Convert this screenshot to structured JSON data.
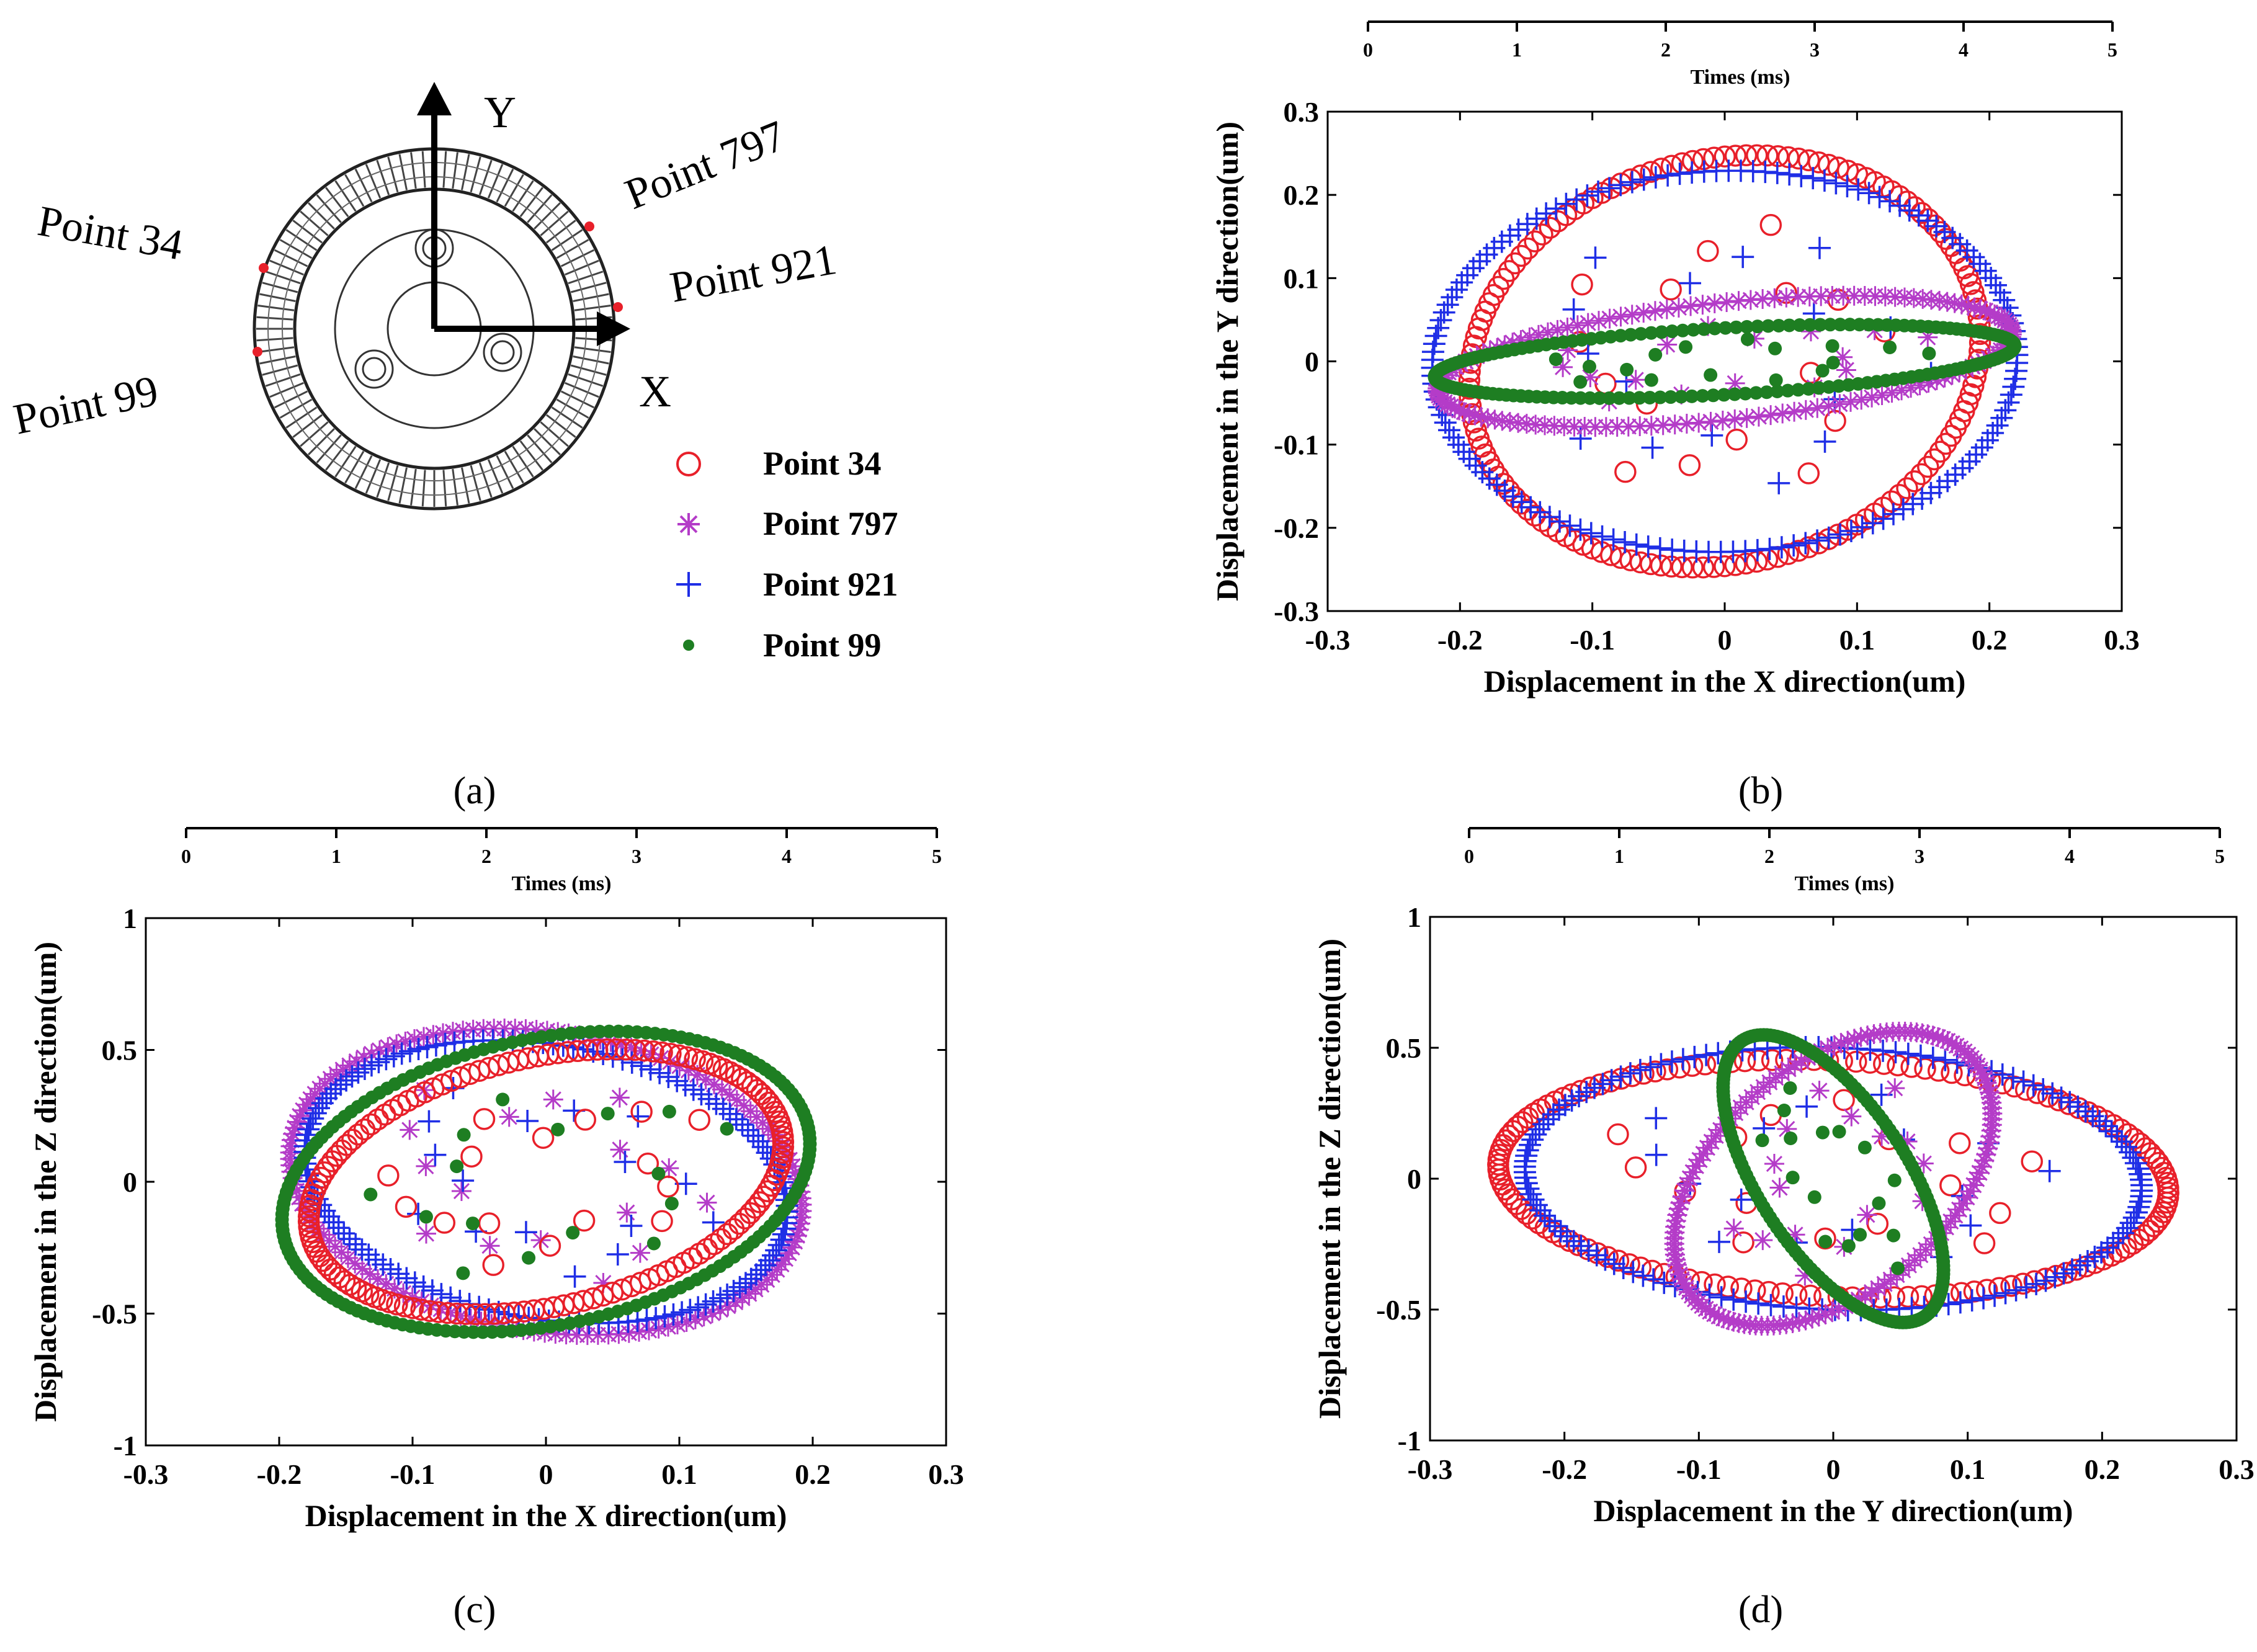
{
  "legend": {
    "items": [
      {
        "name": "Point 34",
        "marker": "circle",
        "color": "#e8202a"
      },
      {
        "name": "Point 797",
        "marker": "asterisk",
        "color": "#b43cc8"
      },
      {
        "name": "Point 921",
        "marker": "plus",
        "color": "#1f2ee6"
      },
      {
        "name": "Point 99",
        "marker": "dot",
        "color": "#1e7e22"
      }
    ]
  },
  "diagram": {
    "panel_label": "(a)",
    "axis_y": "Y",
    "axis_x": "X",
    "points": [
      "Point 797",
      "Point 34",
      "Point 921",
      "Point 99"
    ]
  },
  "chart_data": [
    {
      "type": "scatter",
      "panel_label": "(b)",
      "xlabel": "Displacement in the X direction(um)",
      "ylabel": "Displacement in the Y direction(um)",
      "xlim": [
        -0.3,
        0.3
      ],
      "ylim": [
        -0.3,
        0.3
      ],
      "xticks": [
        "-0.3",
        "-0.2",
        "-0.1",
        "0",
        "0.1",
        "0.2",
        "0.3"
      ],
      "yticks": [
        "0.3",
        "0.2",
        "0.1",
        "0",
        "-0.1",
        "-0.2",
        "-0.3"
      ],
      "time_axis": {
        "label": "Times (ms)",
        "ticks": [
          "0",
          "1",
          "2",
          "3",
          "4",
          "5"
        ],
        "range": [
          0,
          5
        ]
      },
      "series": [
        {
          "name": "Point 34",
          "orbit": {
            "cx": 0.0,
            "cy": 0.0,
            "a": 0.19,
            "b": 0.25,
            "theta_deg": -12
          }
        },
        {
          "name": "Point 921",
          "orbit": {
            "cx": 0.0,
            "cy": 0.0,
            "a": 0.22,
            "b": 0.23,
            "theta_deg": -18
          }
        },
        {
          "name": "Point 797",
          "orbit": {
            "cx": 0.0,
            "cy": 0.0,
            "a": 0.22,
            "b": 0.07,
            "theta_deg": 10
          }
        },
        {
          "name": "Point 99",
          "orbit": {
            "cx": 0.0,
            "cy": 0.0,
            "a": 0.22,
            "b": 0.04,
            "theta_deg": 5
          }
        }
      ]
    },
    {
      "type": "scatter",
      "panel_label": "(c)",
      "xlabel": "Displacement in the X direction(um)",
      "ylabel": "Displacement in the Z direction(um)",
      "xlim": [
        -0.3,
        0.3
      ],
      "ylim": [
        -1,
        1
      ],
      "xticks": [
        "-0.3",
        "-0.2",
        "-0.1",
        "0",
        "0.1",
        "0.2",
        "0.3"
      ],
      "yticks": [
        "1",
        "0.5",
        "0",
        "-0.5",
        "-1"
      ],
      "time_axis": {
        "label": "Times (ms)",
        "ticks": [
          "0",
          "1",
          "2",
          "3",
          "4",
          "5"
        ],
        "range": [
          0,
          5
        ]
      },
      "series": [
        {
          "name": "Point 797",
          "orbit": {
            "cx": 0.0,
            "cy": 0.0,
            "a": 0.2,
            "b": 0.55,
            "theta_deg": -30
          }
        },
        {
          "name": "Point 921",
          "orbit": {
            "cx": 0.0,
            "cy": 0.0,
            "a": 0.19,
            "b": 0.5,
            "theta_deg": -30
          }
        },
        {
          "name": "Point 34",
          "orbit": {
            "cx": 0.0,
            "cy": 0.0,
            "a": 0.19,
            "b": 0.45,
            "theta_deg": 30
          }
        },
        {
          "name": "Point 99",
          "orbit": {
            "cx": 0.0,
            "cy": 0.0,
            "a": 0.21,
            "b": 0.52,
            "theta_deg": 30
          }
        }
      ]
    },
    {
      "type": "scatter",
      "panel_label": "(d)",
      "xlabel": "Displacement in the Y direction(um)",
      "ylabel": "Displacement in the Z direction(um)",
      "xlim": [
        -0.3,
        0.3
      ],
      "ylim": [
        -1,
        1
      ],
      "xticks": [
        "-0.3",
        "-0.2",
        "-0.1",
        "0",
        "0.1",
        "0.2",
        "0.3"
      ],
      "yticks": [
        "1",
        "0.5",
        "0",
        "-0.5",
        "-1"
      ],
      "time_axis": {
        "label": "Times (ms)",
        "ticks": [
          "0",
          "1",
          "2",
          "3",
          "4",
          "5"
        ],
        "range": [
          0,
          5
        ]
      },
      "series": [
        {
          "name": "Point 34",
          "orbit": {
            "cx": 0.0,
            "cy": 0.0,
            "a": 0.25,
            "b": 0.45,
            "theta_deg": -5
          }
        },
        {
          "name": "Point 921",
          "orbit": {
            "cx": 0.0,
            "cy": 0.0,
            "a": 0.23,
            "b": 0.5,
            "theta_deg": -5
          }
        },
        {
          "name": "Point 797",
          "orbit": {
            "cx": 0.0,
            "cy": 0.0,
            "a": 0.1,
            "b": 0.6,
            "theta_deg": -25
          }
        },
        {
          "name": "Point 99",
          "orbit": {
            "cx": 0.0,
            "cy": 0.0,
            "a": 0.06,
            "b": 0.58,
            "theta_deg": 20
          }
        }
      ]
    }
  ]
}
